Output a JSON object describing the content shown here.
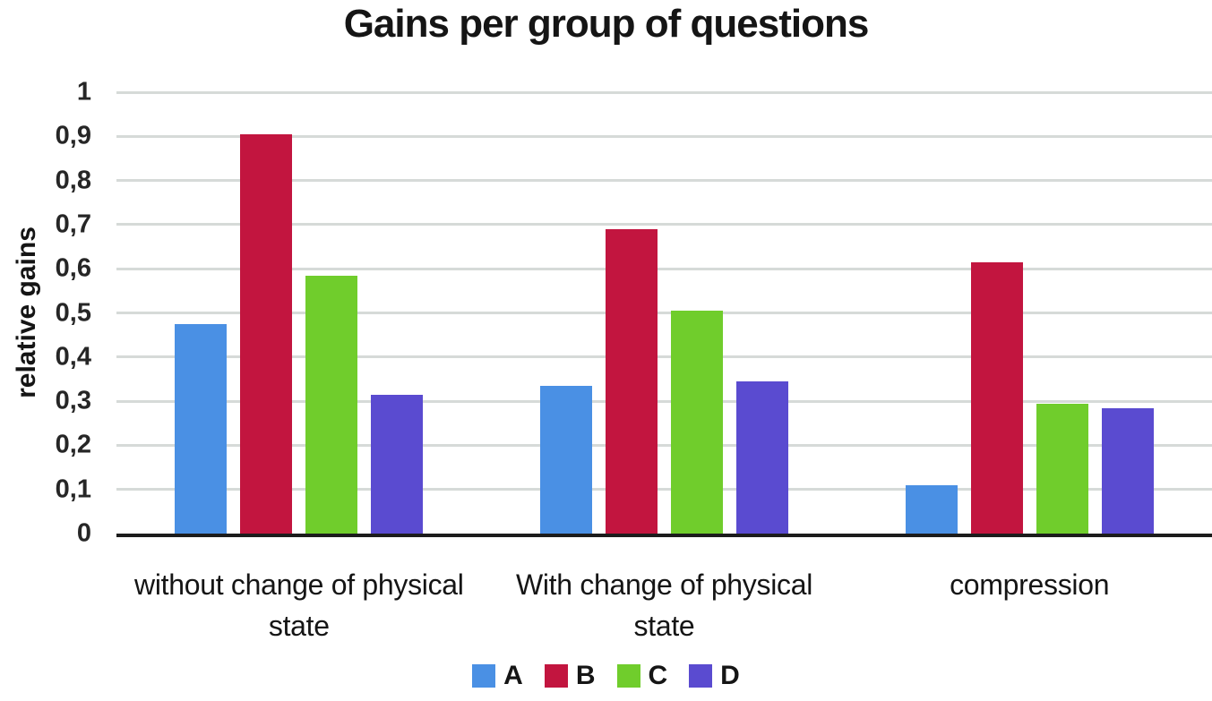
{
  "chart_data": {
    "type": "bar",
    "title": "Gains per group of questions",
    "ylabel": "relative gains",
    "xlabel": "",
    "categories": [
      "without change of physical state",
      "With change of physical state",
      "compression"
    ],
    "series": [
      {
        "name": "A",
        "color": "#4a90e4",
        "values": [
          0.475,
          0.335,
          0.11
        ]
      },
      {
        "name": "B",
        "color": "#c2153f",
        "values": [
          0.905,
          0.69,
          0.615
        ]
      },
      {
        "name": "C",
        "color": "#70cd2c",
        "values": [
          0.585,
          0.505,
          0.295
        ]
      },
      {
        "name": "D",
        "color": "#5a4bd0",
        "values": [
          0.315,
          0.345,
          0.285
        ]
      }
    ],
    "ylim": [
      0,
      1
    ],
    "ytick_step": 0.1,
    "ytick_labels": [
      "0",
      "0,1",
      "0,2",
      "0,3",
      "0,4",
      "0,5",
      "0,6",
      "0,7",
      "0,8",
      "0,9",
      "1"
    ],
    "decimal_separator": ",",
    "grid": true,
    "legend_position": "bottom",
    "axis_color": "#1c1c1c",
    "gridline_color": "#d6dad8"
  }
}
